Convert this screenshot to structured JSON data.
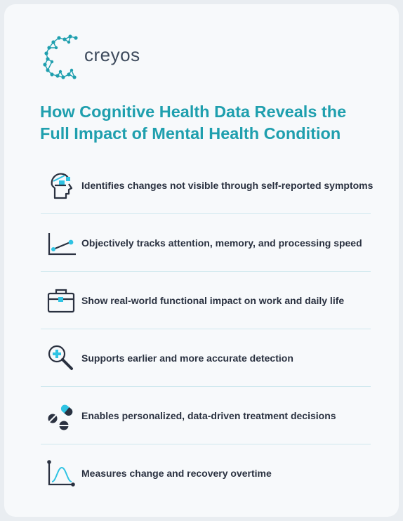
{
  "brand": {
    "name": "creyos",
    "accent": "#1f9fae",
    "cyan": "#2fc3e3",
    "dark": "#2a3140"
  },
  "title": {
    "line1": "How Cognitive Health Data Reveals the",
    "line2": "Full Impact of Mental Health Condition"
  },
  "items": [
    {
      "icon": "brain-head-icon",
      "text": "Identifies changes not visible through self-reported symptoms"
    },
    {
      "icon": "trend-line-icon",
      "text": "Objectively tracks attention, memory, and processing speed"
    },
    {
      "icon": "briefcase-icon",
      "text": "Show real-world functional impact on work and daily life"
    },
    {
      "icon": "magnifier-plus-icon",
      "text": "Supports earlier and more accurate detection"
    },
    {
      "icon": "pills-icon",
      "text": "Enables personalized, data-driven treatment decisions"
    },
    {
      "icon": "bell-curve-chart-icon",
      "text": "Measures change and recovery overtime"
    }
  ]
}
